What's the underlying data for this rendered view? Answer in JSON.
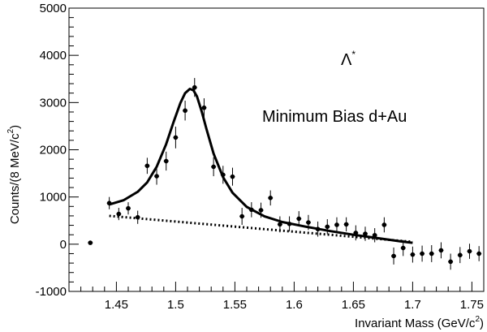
{
  "chart_data": {
    "type": "scatter",
    "xlabel": "Invariant Mass (GeV/c",
    "xlabel_sup": "2",
    "xlabel_end": ")",
    "ylabel": "Counts/(8 MeV/c",
    "ylabel_sup": "2",
    "ylabel_end": ")",
    "xlim": [
      1.41,
      1.76
    ],
    "ylim": [
      -1000,
      5000
    ],
    "x_ticks": [
      1.45,
      1.5,
      1.55,
      1.6,
      1.65,
      1.7,
      1.75
    ],
    "x_tick_labels": [
      "1.45",
      "1.5",
      "1.55",
      "1.6",
      "1.65",
      "1.7",
      "1.75"
    ],
    "y_ticks": [
      -1000,
      0,
      1000,
      2000,
      3000,
      4000,
      5000
    ],
    "y_tick_labels": [
      "-1000",
      "0",
      "1000",
      "2000",
      "3000",
      "4000",
      "5000"
    ],
    "annotations": {
      "particle": "Λ",
      "particle_sup": "*",
      "dataset": "Minimum Bias  d+Au"
    },
    "series": [
      {
        "kind": "points",
        "x": [
          1.428,
          1.444,
          1.452,
          1.46,
          1.468,
          1.476,
          1.484,
          1.492,
          1.5,
          1.508,
          1.516,
          1.524,
          1.532,
          1.54,
          1.548,
          1.556,
          1.564,
          1.572,
          1.58,
          1.588,
          1.596,
          1.604,
          1.612,
          1.62,
          1.628,
          1.636,
          1.644,
          1.652,
          1.66,
          1.668,
          1.676,
          1.684,
          1.692,
          1.7,
          1.708,
          1.716,
          1.724,
          1.732,
          1.74,
          1.748,
          1.756
        ],
        "y": [
          30,
          870,
          640,
          760,
          570,
          1660,
          1440,
          1760,
          2260,
          2830,
          3320,
          2890,
          1640,
          1470,
          1430,
          590,
          730,
          720,
          980,
          420,
          430,
          540,
          460,
          320,
          370,
          410,
          420,
          240,
          220,
          190,
          410,
          -250,
          -80,
          -220,
          -200,
          -200,
          -130,
          -370,
          -230,
          -150,
          -200
        ],
        "yerr": [
          20,
          130,
          130,
          130,
          140,
          170,
          180,
          200,
          230,
          210,
          200,
          200,
          200,
          190,
          190,
          180,
          160,
          160,
          160,
          170,
          160,
          160,
          160,
          160,
          160,
          160,
          150,
          160,
          150,
          150,
          160,
          180,
          170,
          170,
          170,
          180,
          170,
          170,
          170,
          160,
          160
        ]
      },
      {
        "kind": "fit",
        "x": [
          1.444,
          1.456,
          1.468,
          1.476,
          1.484,
          1.492,
          1.498,
          1.504,
          1.508,
          1.512,
          1.515,
          1.518,
          1.522,
          1.526,
          1.532,
          1.54,
          1.548,
          1.56,
          1.575,
          1.59,
          1.61,
          1.63,
          1.65,
          1.67,
          1.69,
          1.7
        ],
        "y": [
          840,
          930,
          1110,
          1310,
          1640,
          2120,
          2570,
          2990,
          3200,
          3290,
          3260,
          3130,
          2810,
          2440,
          1920,
          1420,
          1090,
          790,
          590,
          470,
          370,
          280,
          200,
          130,
          60,
          30
        ]
      },
      {
        "kind": "background",
        "x": [
          1.444,
          1.7
        ],
        "y": [
          600,
          50
        ]
      }
    ]
  }
}
